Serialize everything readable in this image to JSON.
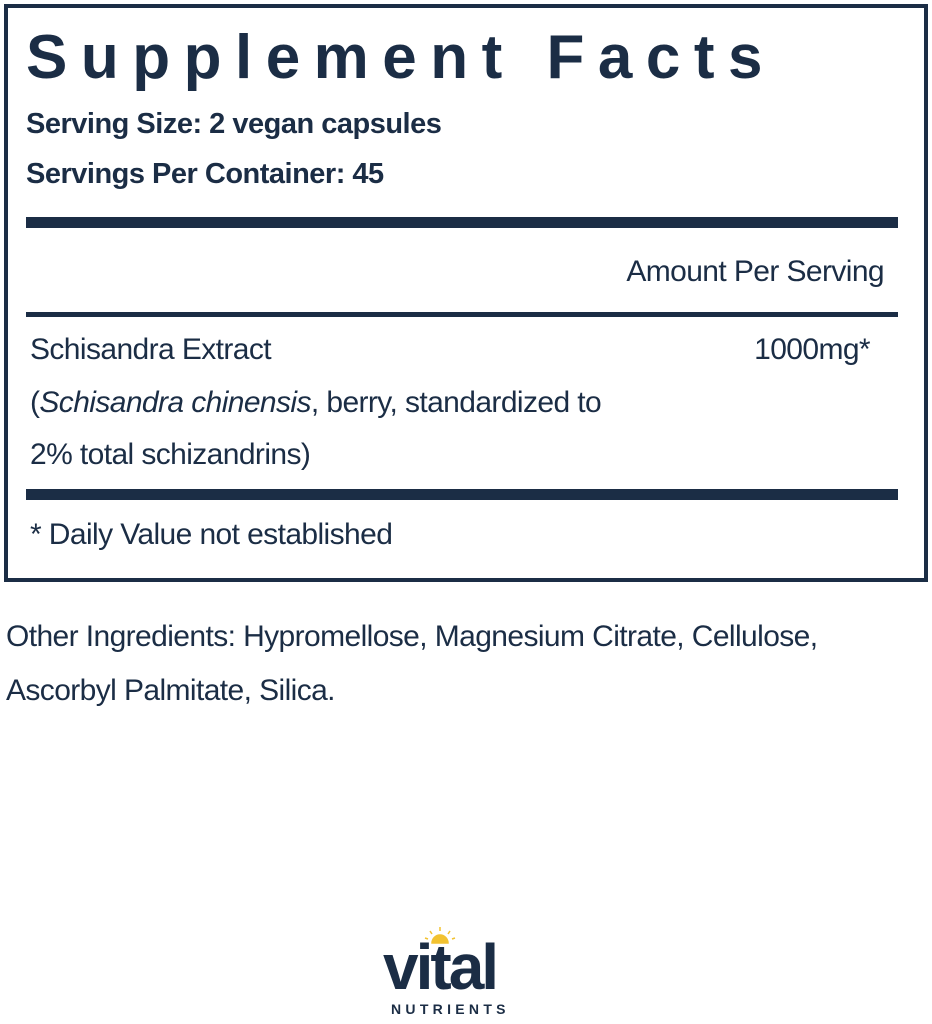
{
  "panel": {
    "title": "Supplement Facts",
    "serving_size": "Serving Size: 2 vegan capsules",
    "servings_per_container": "Servings Per Container: 45",
    "amount_header": "Amount Per Serving",
    "ingredient": {
      "name": "Schisandra Extract",
      "paren_open": "(",
      "latin_name": "Schisandra chinensis",
      "detail_line1_rest": ", berry, standardized to",
      "detail_line2": "2% total schizandrins)",
      "amount": "1000mg*"
    },
    "footnote": "* Daily Value not established"
  },
  "other_ingredients": {
    "line1": "Other Ingredients: Hypromellose, Magnesium Citrate, Cellulose,",
    "line2": "Ascorbyl Palmitate, Silica."
  },
  "logo": {
    "word": "vital",
    "subword": "NUTRIENTS",
    "brand_color": "#1b2d45",
    "sun_color": "#f2c230"
  }
}
